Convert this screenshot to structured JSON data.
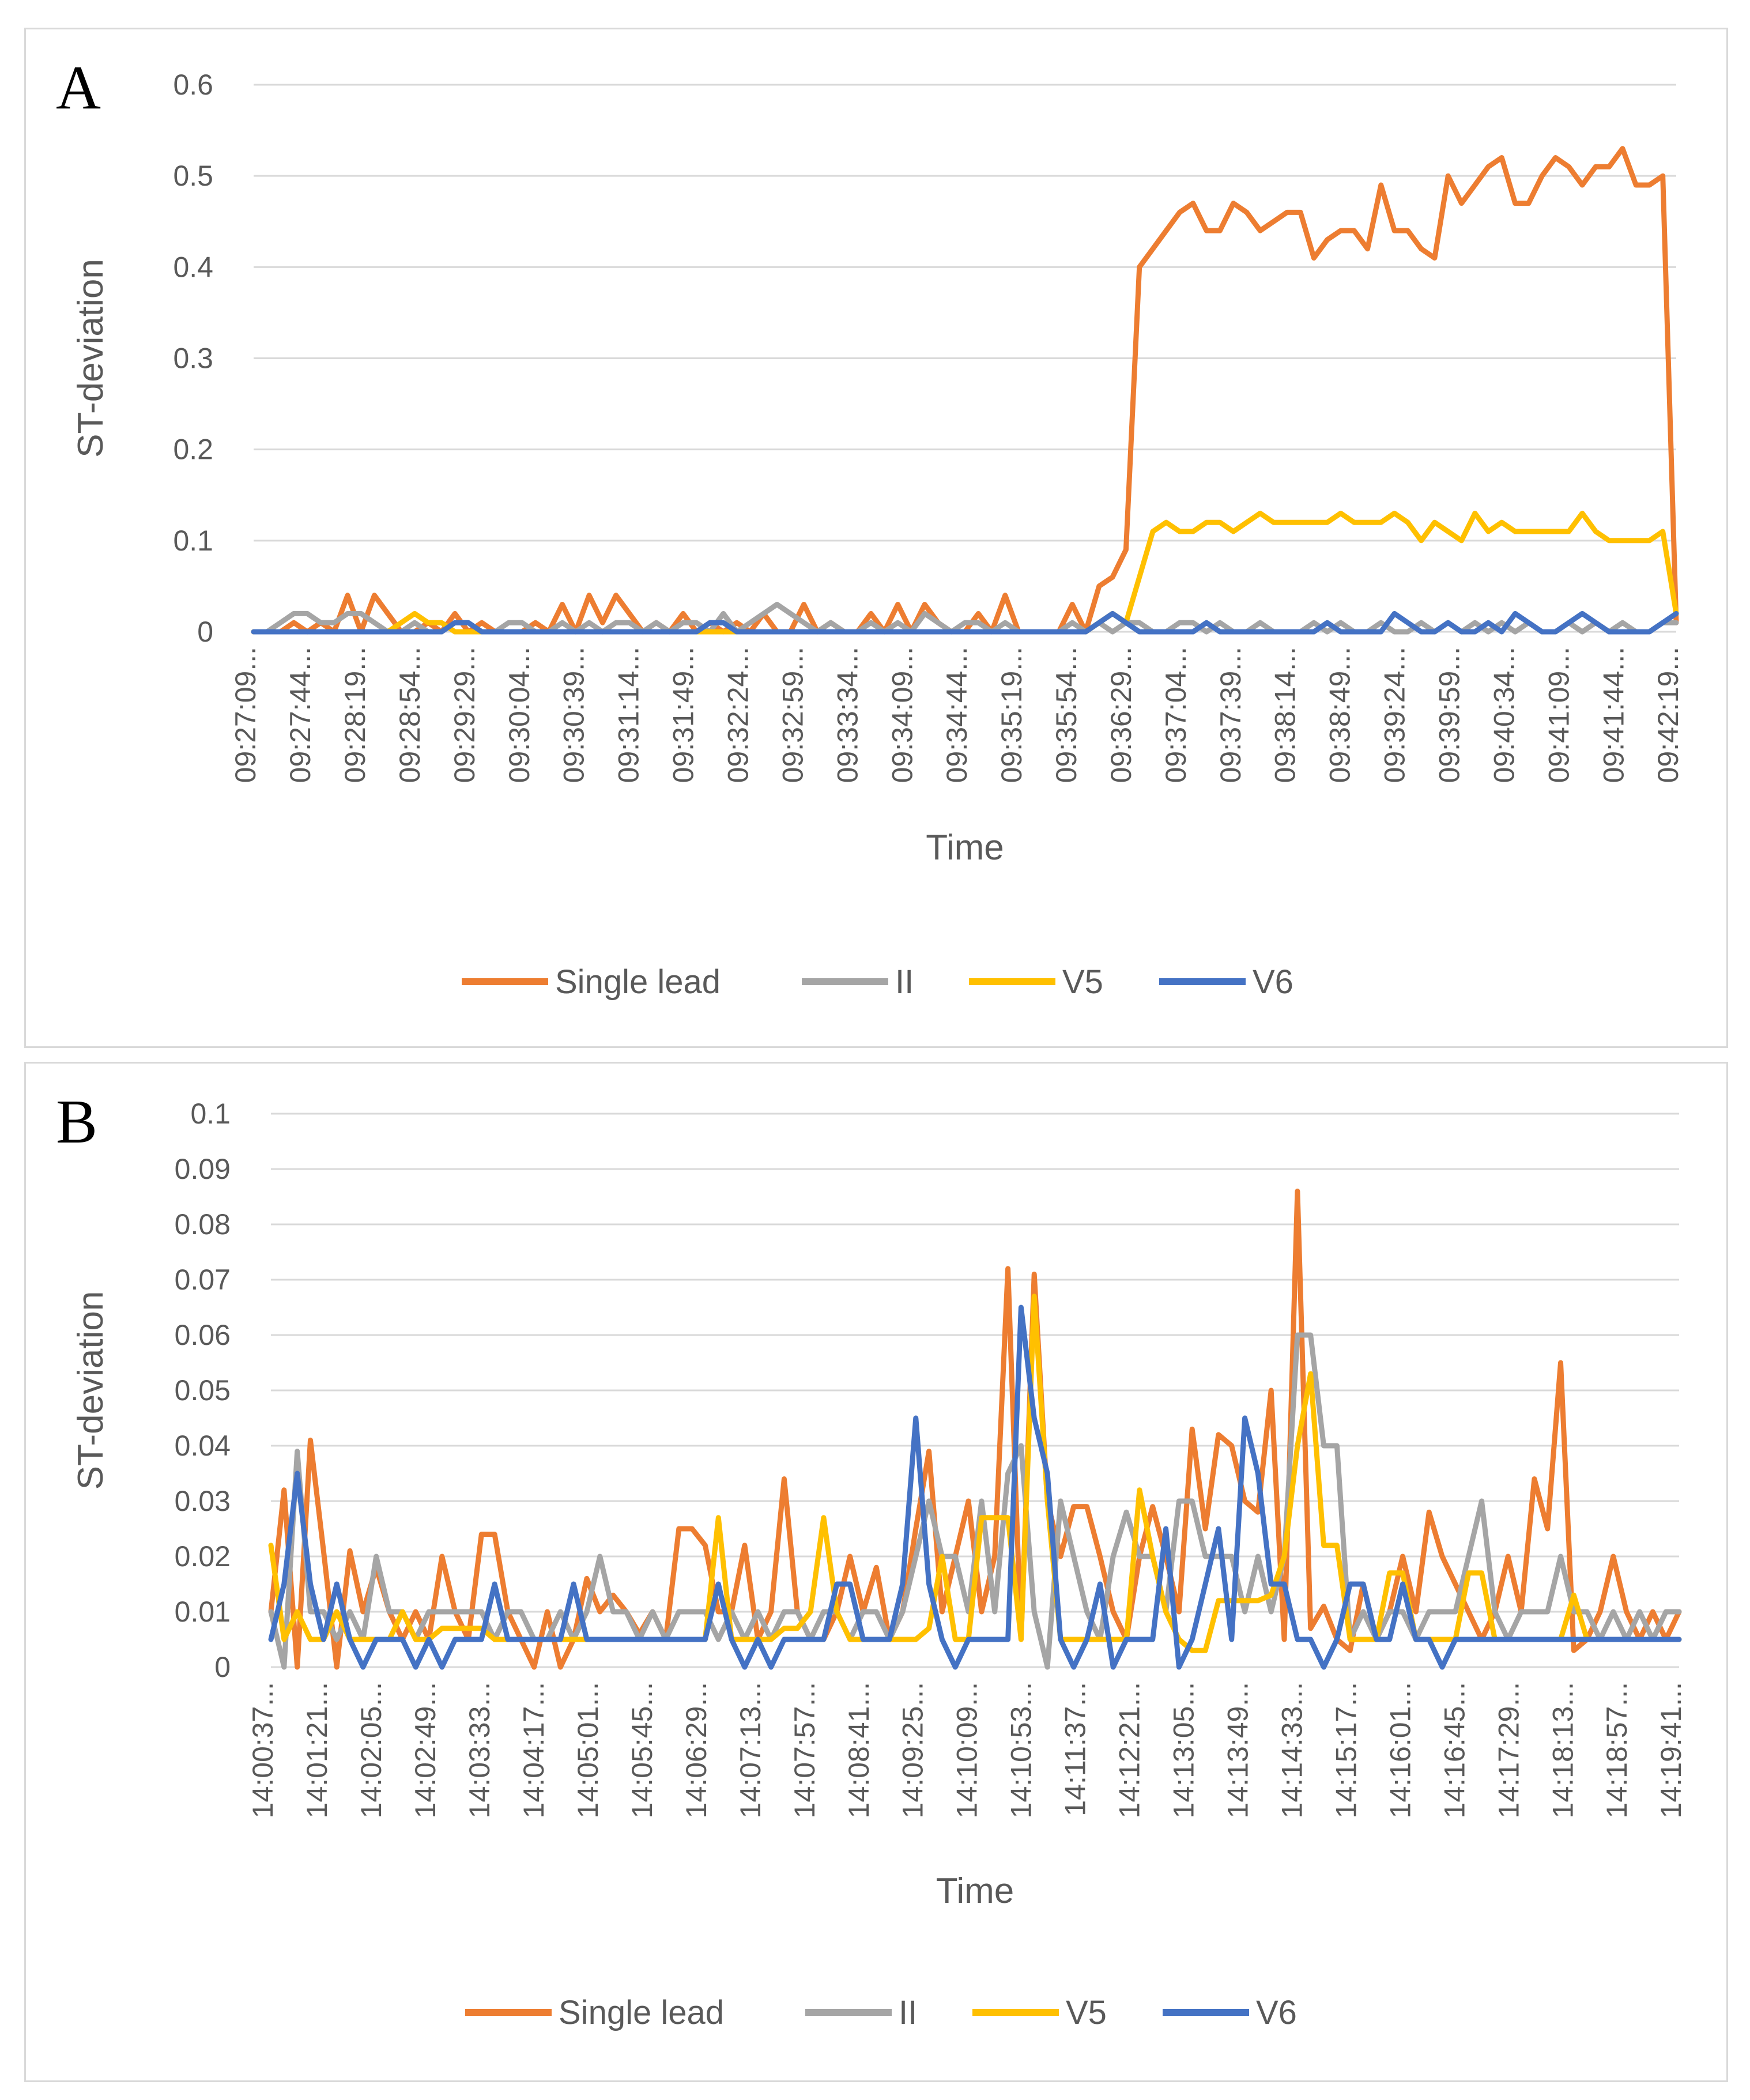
{
  "colors": {
    "single_lead": "#ED7D31",
    "ii": "#A5A5A5",
    "v5": "#FFC000",
    "v6": "#4472C4"
  },
  "chart_data": [
    {
      "panel": "A",
      "type": "line",
      "title": "",
      "xlabel": "Time",
      "ylabel": "ST-deviation",
      "ylim": [
        0,
        0.6
      ],
      "yticks": [
        "0",
        "0.1",
        "0.2",
        "0.3",
        "0.4",
        "0.5",
        "0.6"
      ],
      "x_tick_labels": [
        "09:27:09...",
        "09:27:44...",
        "09:28:19...",
        "09:28:54...",
        "09:29:29...",
        "09:30:04...",
        "09:30:39...",
        "09:31:14...",
        "09:31:49...",
        "09:32:24...",
        "09:32:59...",
        "09:33:34...",
        "09:34:09...",
        "09:34:44...",
        "09:35:19...",
        "09:35:54...",
        "09:36:29...",
        "09:37:04...",
        "09:37:39...",
        "09:38:14...",
        "09:38:49...",
        "09:39:24...",
        "09:39:59...",
        "09:40:34...",
        "09:41:09...",
        "09:41:44...",
        "09:42:19..."
      ],
      "legend": [
        "Single lead",
        "II",
        "V5",
        "V6"
      ],
      "legend_position": "bottom",
      "n_points": 107,
      "series": [
        {
          "name": "Single lead",
          "values": [
            0,
            0,
            0,
            0.01,
            0,
            0.01,
            0,
            0.04,
            0,
            0.04,
            0.02,
            0,
            0,
            0.01,
            0,
            0.02,
            0,
            0.01,
            0,
            0,
            0,
            0.01,
            0,
            0.03,
            0,
            0.04,
            0.01,
            0.04,
            0.02,
            0,
            0.01,
            0,
            0.02,
            0,
            0.01,
            0,
            0.01,
            0,
            0.02,
            0,
            0,
            0.03,
            0,
            0.01,
            0,
            0,
            0.02,
            0,
            0.03,
            0,
            0.03,
            0.01,
            0,
            0,
            0.02,
            0,
            0.04,
            0,
            0,
            0,
            0,
            0.03,
            0,
            0.05,
            0.06,
            0.09,
            0.4,
            0.42,
            0.44,
            0.46,
            0.47,
            0.44,
            0.44,
            0.47,
            0.46,
            0.44,
            0.45,
            0.46,
            0.46,
            0.41,
            0.43,
            0.44,
            0.44,
            0.42,
            0.49,
            0.44,
            0.44,
            0.42,
            0.41,
            0.5,
            0.47,
            0.49,
            0.51,
            0.52,
            0.47,
            0.47,
            0.5,
            0.52,
            0.51,
            0.49,
            0.51,
            0.51,
            0.53,
            0.49,
            0.49,
            0.5,
            0.01
          ]
        },
        {
          "name": "II",
          "values": [
            0,
            0,
            0.01,
            0.02,
            0.02,
            0.01,
            0.01,
            0.02,
            0.02,
            0.01,
            0,
            0,
            0.01,
            0,
            0,
            0.01,
            0.01,
            0,
            0,
            0.01,
            0.01,
            0,
            0,
            0.01,
            0,
            0.01,
            0,
            0.01,
            0.01,
            0,
            0.01,
            0,
            0.01,
            0.01,
            0,
            0.02,
            0,
            0.01,
            0.02,
            0.03,
            0.02,
            0.01,
            0,
            0.01,
            0,
            0,
            0.01,
            0,
            0.01,
            0,
            0.02,
            0.01,
            0,
            0.01,
            0.01,
            0,
            0.01,
            0,
            0,
            0,
            0,
            0.01,
            0,
            0.01,
            0,
            0.01,
            0.01,
            0,
            0,
            0.01,
            0.01,
            0,
            0.01,
            0,
            0,
            0.01,
            0,
            0,
            0,
            0.01,
            0,
            0.01,
            0,
            0,
            0.01,
            0,
            0,
            0.01,
            0,
            0.01,
            0,
            0.01,
            0,
            0.01,
            0,
            0.01,
            0,
            0,
            0.01,
            0,
            0.01,
            0,
            0.01,
            0,
            0,
            0.01,
            0.01
          ]
        },
        {
          "name": "V5",
          "values": [
            0,
            0,
            0,
            0,
            0,
            0,
            0,
            0,
            0,
            0,
            0,
            0.01,
            0.02,
            0.01,
            0.01,
            0,
            0,
            0,
            0,
            0,
            0,
            0,
            0,
            0,
            0,
            0,
            0,
            0,
            0,
            0,
            0,
            0,
            0,
            0,
            0,
            0,
            0,
            0,
            0,
            0,
            0,
            0,
            0,
            0,
            0,
            0,
            0,
            0,
            0,
            0,
            0,
            0,
            0,
            0,
            0,
            0,
            0,
            0,
            0,
            0,
            0,
            0,
            0,
            0.01,
            0.02,
            0.01,
            0.06,
            0.11,
            0.12,
            0.11,
            0.11,
            0.12,
            0.12,
            0.11,
            0.12,
            0.13,
            0.12,
            0.12,
            0.12,
            0.12,
            0.12,
            0.13,
            0.12,
            0.12,
            0.12,
            0.13,
            0.12,
            0.1,
            0.12,
            0.11,
            0.1,
            0.13,
            0.11,
            0.12,
            0.11,
            0.11,
            0.11,
            0.11,
            0.11,
            0.13,
            0.11,
            0.1,
            0.1,
            0.1,
            0.1,
            0.11,
            0.02
          ]
        },
        {
          "name": "V6",
          "values": [
            0,
            0,
            0,
            0,
            0,
            0,
            0,
            0,
            0,
            0,
            0,
            0,
            0,
            0,
            0,
            0.01,
            0.01,
            0,
            0,
            0,
            0,
            0,
            0,
            0,
            0,
            0,
            0,
            0,
            0,
            0,
            0,
            0,
            0,
            0,
            0.01,
            0.01,
            0,
            0,
            0,
            0,
            0,
            0,
            0,
            0,
            0,
            0,
            0,
            0,
            0,
            0,
            0,
            0,
            0,
            0,
            0,
            0,
            0,
            0,
            0,
            0,
            0,
            0,
            0,
            0.01,
            0.02,
            0.01,
            0,
            0,
            0,
            0,
            0,
            0.01,
            0,
            0,
            0,
            0,
            0,
            0,
            0,
            0,
            0.01,
            0,
            0,
            0,
            0,
            0.02,
            0.01,
            0,
            0,
            0.01,
            0,
            0,
            0.01,
            0,
            0.02,
            0.01,
            0,
            0,
            0.01,
            0.02,
            0.01,
            0,
            0,
            0,
            0,
            0.01,
            0.02
          ]
        }
      ]
    },
    {
      "panel": "B",
      "type": "line",
      "title": "",
      "xlabel": "Time",
      "ylabel": "ST-deviation",
      "ylim": [
        0,
        0.1
      ],
      "yticks": [
        "0",
        "0.01",
        "0.02",
        "0.03",
        "0.04",
        "0.05",
        "0.06",
        "0.07",
        "0.08",
        "0.09",
        "0.1"
      ],
      "x_tick_labels": [
        "14:00:37...",
        "14:01:21...",
        "14:02:05...",
        "14:02:49...",
        "14:03:33...",
        "14:04:17...",
        "14:05:01...",
        "14:05:45...",
        "14:06:29...",
        "14:07:13...",
        "14:07:57...",
        "14:08:41...",
        "14:09:25...",
        "14:10:09...",
        "14:10:53...",
        "14:11:37...",
        "14:12:21...",
        "14:13:05...",
        "14:13:49...",
        "14:14:33...",
        "14:15:17...",
        "14:16:01...",
        "14:16:45...",
        "14:17:29...",
        "14:18:13...",
        "14:18:57...",
        "14:19:41..."
      ],
      "legend": [
        "Single lead",
        "II",
        "V5",
        "V6"
      ],
      "legend_position": "bottom",
      "n_points": 108,
      "series": [
        {
          "name": "Single lead",
          "values": [
            0.01,
            0.032,
            0,
            0.041,
            0.021,
            0,
            0.021,
            0.01,
            0.018,
            0.01,
            0.005,
            0.01,
            0.005,
            0.02,
            0.01,
            0.005,
            0.024,
            0.024,
            0.01,
            0.005,
            0,
            0.01,
            0,
            0.005,
            0.016,
            0.01,
            0.013,
            0.01,
            0.006,
            0.01,
            0.005,
            0.025,
            0.025,
            0.022,
            0.01,
            0.01,
            0.022,
            0.005,
            0.01,
            0.034,
            0.01,
            0.005,
            0.005,
            0.01,
            0.02,
            0.01,
            0.018,
            0.005,
            0.01,
            0.025,
            0.039,
            0.01,
            0.02,
            0.03,
            0.01,
            0.02,
            0.072,
            0.005,
            0.071,
            0.03,
            0.02,
            0.029,
            0.029,
            0.02,
            0.01,
            0.005,
            0.02,
            0.029,
            0.02,
            0.01,
            0.043,
            0.025,
            0.042,
            0.04,
            0.03,
            0.028,
            0.05,
            0.005,
            0.086,
            0.007,
            0.011,
            0.005,
            0.003,
            0.015,
            0.005,
            0.01,
            0.02,
            0.01,
            0.028,
            0.02,
            0.015,
            0.01,
            0.005,
            0.01,
            0.02,
            0.01,
            0.034,
            0.025,
            0.055,
            0.003,
            0.005,
            0.01,
            0.02,
            0.01,
            0.005,
            0.01,
            0.005,
            0.01
          ]
        },
        {
          "name": "II",
          "values": [
            0.01,
            0,
            0.039,
            0.01,
            0.01,
            0.005,
            0.01,
            0.005,
            0.02,
            0.01,
            0.01,
            0.005,
            0.01,
            0.01,
            0.01,
            0.01,
            0.01,
            0.005,
            0.01,
            0.01,
            0.005,
            0.005,
            0.01,
            0.005,
            0.01,
            0.02,
            0.01,
            0.01,
            0.005,
            0.01,
            0.005,
            0.01,
            0.01,
            0.01,
            0.005,
            0.01,
            0.005,
            0.01,
            0.005,
            0.01,
            0.01,
            0.005,
            0.01,
            0.01,
            0.005,
            0.01,
            0.01,
            0.005,
            0.01,
            0.02,
            0.03,
            0.02,
            0.02,
            0.01,
            0.03,
            0.01,
            0.035,
            0.04,
            0.01,
            0,
            0.03,
            0.02,
            0.01,
            0.005,
            0.02,
            0.028,
            0.02,
            0.02,
            0.01,
            0.03,
            0.03,
            0.02,
            0.02,
            0.02,
            0.01,
            0.02,
            0.01,
            0.02,
            0.06,
            0.06,
            0.04,
            0.04,
            0.005,
            0.01,
            0.005,
            0.01,
            0.01,
            0.005,
            0.01,
            0.01,
            0.01,
            0.02,
            0.03,
            0.01,
            0.005,
            0.01,
            0.01,
            0.01,
            0.02,
            0.01,
            0.01,
            0.005,
            0.01,
            0.005,
            0.01,
            0.005,
            0.01,
            0.01
          ]
        },
        {
          "name": "V5",
          "values": [
            0.022,
            0.005,
            0.01,
            0.005,
            0.005,
            0.01,
            0.005,
            0.005,
            0.005,
            0.005,
            0.01,
            0.005,
            0.005,
            0.007,
            0.007,
            0.007,
            0.007,
            0.005,
            0.005,
            0.005,
            0.005,
            0.005,
            0.005,
            0.005,
            0.005,
            0.005,
            0.005,
            0.005,
            0.005,
            0.005,
            0.005,
            0.005,
            0.005,
            0.005,
            0.027,
            0.005,
            0.005,
            0.005,
            0.005,
            0.007,
            0.007,
            0.01,
            0.027,
            0.01,
            0.005,
            0.005,
            0.005,
            0.005,
            0.005,
            0.005,
            0.007,
            0.02,
            0.005,
            0.005,
            0.027,
            0.027,
            0.027,
            0.005,
            0.067,
            0.03,
            0.005,
            0.005,
            0.005,
            0.005,
            0.005,
            0.005,
            0.032,
            0.02,
            0.01,
            0.005,
            0.003,
            0.003,
            0.012,
            0.012,
            0.012,
            0.012,
            0.013,
            0.02,
            0.04,
            0.053,
            0.022,
            0.022,
            0.005,
            0.005,
            0.005,
            0.017,
            0.017,
            0.005,
            0.005,
            0.005,
            0.005,
            0.017,
            0.017,
            0.005,
            0.005,
            0.005,
            0.005,
            0.005,
            0.005,
            0.013,
            0.005,
            0.005,
            0.005,
            0.005,
            0.005,
            0.005,
            0.005,
            0.005
          ]
        },
        {
          "name": "V6",
          "values": [
            0.005,
            0.015,
            0.035,
            0.015,
            0.005,
            0.015,
            0.005,
            0,
            0.005,
            0.005,
            0.005,
            0,
            0.005,
            0,
            0.005,
            0.005,
            0.005,
            0.015,
            0.005,
            0.005,
            0.005,
            0.005,
            0.005,
            0.015,
            0.005,
            0.005,
            0.005,
            0.005,
            0.005,
            0.005,
            0.005,
            0.005,
            0.005,
            0.005,
            0.015,
            0.005,
            0,
            0.005,
            0,
            0.005,
            0.005,
            0.005,
            0.005,
            0.015,
            0.015,
            0.005,
            0.005,
            0.005,
            0.015,
            0.045,
            0.015,
            0.005,
            0,
            0.005,
            0.005,
            0.005,
            0.005,
            0.065,
            0.045,
            0.035,
            0.005,
            0,
            0.005,
            0.015,
            0,
            0.005,
            0.005,
            0.005,
            0.025,
            0,
            0.005,
            0.015,
            0.025,
            0.005,
            0.045,
            0.035,
            0.015,
            0.015,
            0.005,
            0.005,
            0,
            0.005,
            0.015,
            0.015,
            0.005,
            0.005,
            0.015,
            0.005,
            0.005,
            0,
            0.005,
            0.005,
            0.005,
            0.005,
            0.005,
            0.005,
            0.005,
            0.005,
            0.005,
            0.005,
            0.005,
            0.005,
            0.005,
            0.005,
            0.005,
            0.005,
            0.005,
            0.005
          ]
        }
      ]
    }
  ]
}
